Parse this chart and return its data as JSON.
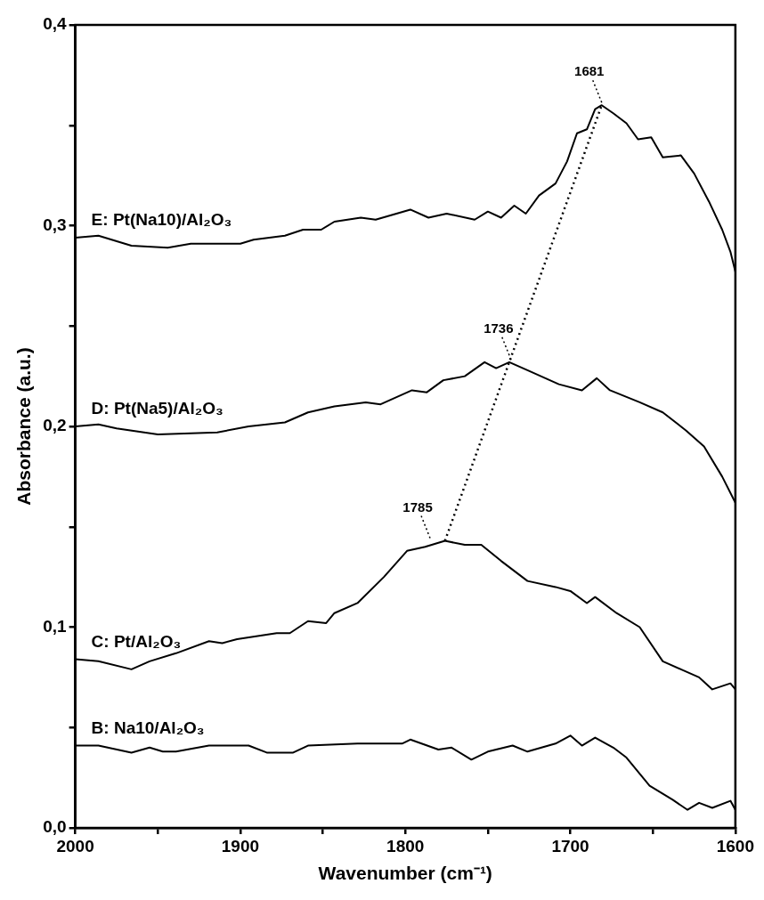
{
  "chart_data": {
    "type": "line",
    "xlabel": "Wavenumber (cm⁻¹)",
    "ylabel": "Absorbance (a.u.)",
    "xlim": [
      2000,
      1600
    ],
    "ylim": [
      0,
      0.4
    ],
    "xticks": [
      2000,
      {
        "value": 1950,
        "label": null
      },
      1900,
      {
        "value": 1850,
        "label": null
      },
      1800,
      {
        "value": 1750,
        "label": null
      },
      1700,
      {
        "value": 1650,
        "label": null
      },
      1600
    ],
    "yticks": [
      {
        "value": 0,
        "label": "0,0"
      },
      {
        "value": 0.05,
        "label": null
      },
      {
        "value": 0.1,
        "label": "0,1"
      },
      {
        "value": 0.15,
        "label": null
      },
      {
        "value": 0.2,
        "label": "0,2"
      },
      {
        "value": 0.25,
        "label": null
      },
      {
        "value": 0.3,
        "label": "0,3"
      },
      {
        "value": 0.35,
        "label": null
      },
      {
        "value": 0.4,
        "label": "0,4"
      }
    ],
    "grid": false,
    "series": [
      {
        "name": "E: Pt(Na10)/Al₂O₃",
        "color": "#000000",
        "x": [
          2000,
          1986,
          1966,
          1944,
          1930,
          1900,
          1892,
          1873,
          1862,
          1851,
          1843,
          1827,
          1818,
          1797,
          1786,
          1775,
          1758,
          1750,
          1742,
          1734,
          1727,
          1719,
          1709,
          1702,
          1696,
          1690,
          1685,
          1681,
          1674,
          1666,
          1659,
          1651,
          1644,
          1633,
          1625,
          1616,
          1608,
          1603,
          1600
        ],
        "values": [
          0.294,
          0.295,
          0.29,
          0.289,
          0.291,
          0.291,
          0.293,
          0.295,
          0.298,
          0.298,
          0.302,
          0.304,
          0.303,
          0.308,
          0.304,
          0.306,
          0.303,
          0.307,
          0.304,
          0.31,
          0.306,
          0.315,
          0.321,
          0.332,
          0.346,
          0.348,
          0.358,
          0.36,
          0.356,
          0.351,
          0.343,
          0.344,
          0.334,
          0.335,
          0.326,
          0.312,
          0.298,
          0.287,
          0.277
        ]
      },
      {
        "name": "D: Pt(Na5)/Al₂O₃",
        "color": "#000000",
        "x": [
          2000,
          1986,
          1975,
          1950,
          1914,
          1895,
          1873,
          1859,
          1843,
          1824,
          1815,
          1796,
          1787,
          1777,
          1764,
          1752,
          1745,
          1737,
          1726,
          1707,
          1693,
          1684,
          1676,
          1658,
          1644,
          1630,
          1619,
          1608,
          1600
        ],
        "values": [
          0.2,
          0.201,
          0.199,
          0.196,
          0.197,
          0.2,
          0.202,
          0.207,
          0.21,
          0.212,
          0.211,
          0.218,
          0.217,
          0.223,
          0.225,
          0.232,
          0.229,
          0.232,
          0.228,
          0.221,
          0.218,
          0.224,
          0.218,
          0.212,
          0.207,
          0.198,
          0.19,
          0.175,
          0.162
        ]
      },
      {
        "name": "C: Pt/Al₂O₃",
        "color": "#000000",
        "x": [
          2000,
          1986,
          1966,
          1955,
          1939,
          1919,
          1911,
          1902,
          1878,
          1870,
          1859,
          1848,
          1843,
          1829,
          1813,
          1799,
          1788,
          1776,
          1764,
          1754,
          1742,
          1726,
          1709,
          1700,
          1690,
          1685,
          1672,
          1658,
          1644,
          1633,
          1622,
          1614,
          1603,
          1600
        ],
        "values": [
          0.084,
          0.083,
          0.079,
          0.083,
          0.087,
          0.093,
          0.092,
          0.094,
          0.097,
          0.097,
          0.103,
          0.102,
          0.107,
          0.112,
          0.125,
          0.138,
          0.14,
          0.143,
          0.141,
          0.141,
          0.133,
          0.123,
          0.12,
          0.118,
          0.112,
          0.115,
          0.107,
          0.1,
          0.083,
          0.079,
          0.075,
          0.069,
          0.072,
          0.069
        ]
      },
      {
        "name": "B: Na10/Al₂O₃",
        "color": "#000000",
        "x": [
          2000,
          1986,
          1966,
          1955,
          1947,
          1939,
          1919,
          1895,
          1884,
          1868,
          1859,
          1829,
          1802,
          1797,
          1780,
          1772,
          1760,
          1750,
          1735,
          1726,
          1709,
          1700,
          1693,
          1685,
          1674,
          1666,
          1652,
          1638,
          1629,
          1622,
          1614,
          1603,
          1600
        ],
        "values": [
          0.041,
          0.041,
          0.0375,
          0.04,
          0.038,
          0.038,
          0.041,
          0.041,
          0.0375,
          0.0375,
          0.041,
          0.042,
          0.042,
          0.044,
          0.039,
          0.04,
          0.034,
          0.038,
          0.041,
          0.038,
          0.042,
          0.046,
          0.041,
          0.045,
          0.04,
          0.035,
          0.021,
          0.014,
          0.009,
          0.0125,
          0.01,
          0.0135,
          0.009
        ]
      },
      {
        "type": "line",
        "line_style": "dotted",
        "color": "#000000",
        "x": [
          1776,
          1681
        ],
        "values": [
          0.143,
          0.36
        ]
      }
    ],
    "annotations": [
      {
        "text": "1681",
        "x": 1681,
        "y": 0.36
      },
      {
        "text": "1736",
        "x": 1736,
        "y": 0.232
      },
      {
        "text": "1785",
        "x": 1785,
        "y": 0.143
      }
    ]
  }
}
